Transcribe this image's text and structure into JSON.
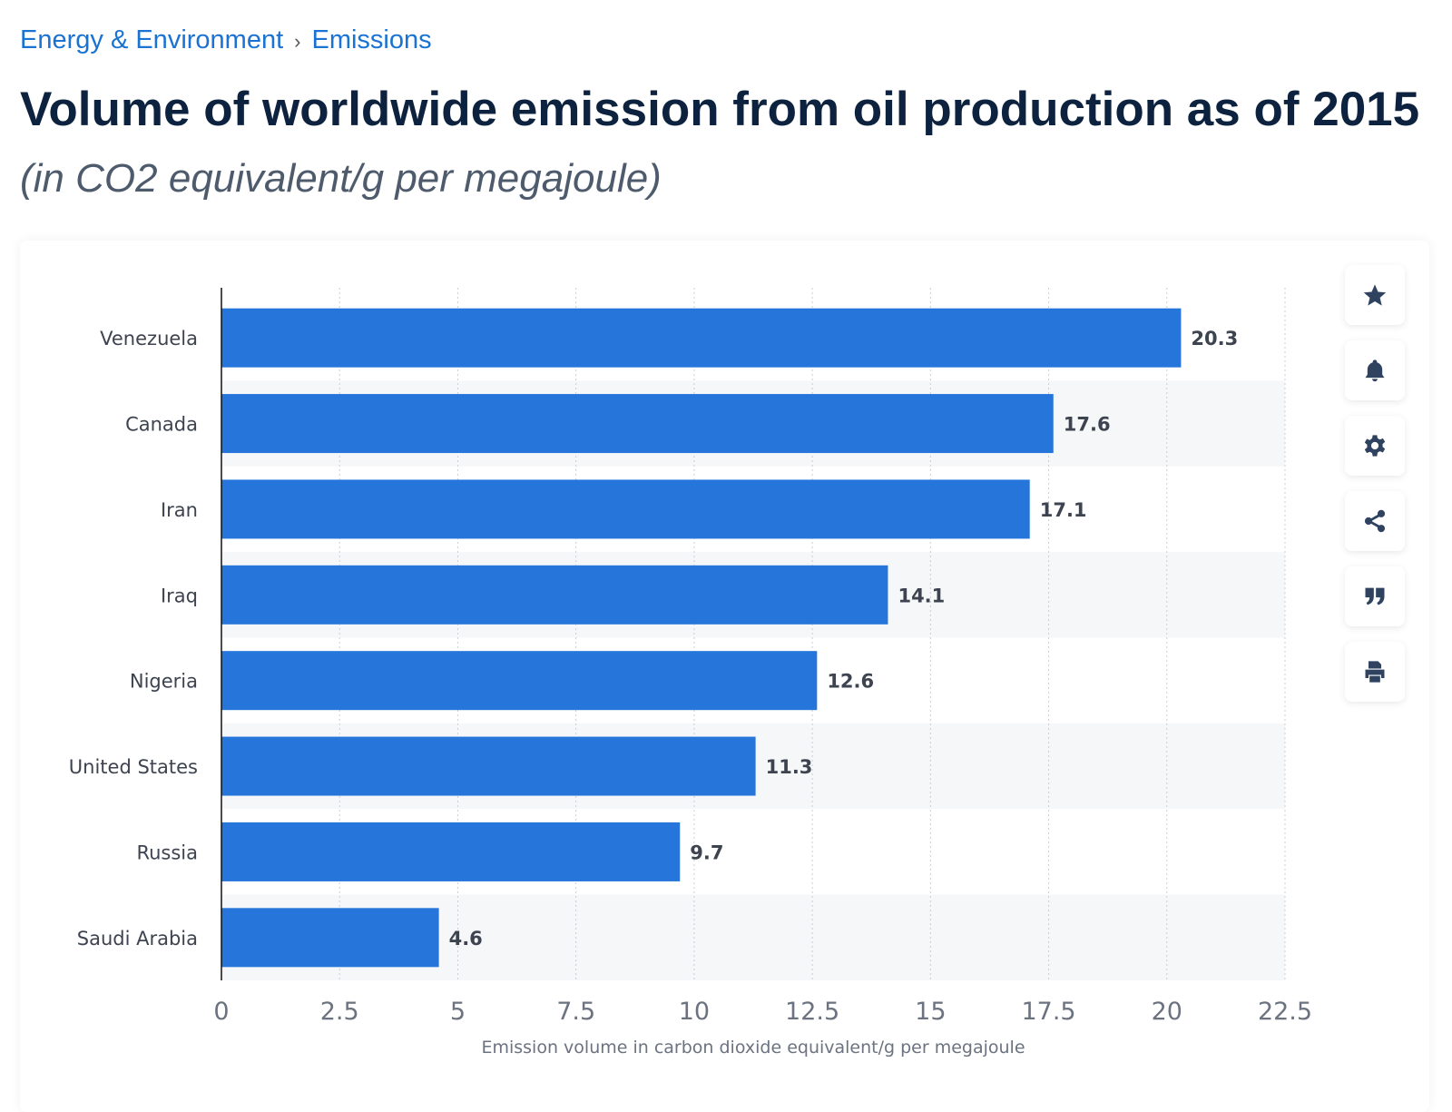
{
  "breadcrumb": {
    "items": [
      "Energy & Environment",
      "Emissions"
    ],
    "separator": "›"
  },
  "title": "Volume of worldwide emission from oil production as of 2015",
  "subtitle": "(in CO2 equivalent/g per megajoule)",
  "toolbar": {
    "icons": [
      "star-icon",
      "bell-icon",
      "gear-icon",
      "share-icon",
      "quote-icon",
      "print-icon"
    ]
  },
  "chart_data": {
    "type": "bar",
    "orientation": "horizontal",
    "categories": [
      "Venezuela",
      "Canada",
      "Iran",
      "Iraq",
      "Nigeria",
      "United States",
      "Russia",
      "Saudi Arabia"
    ],
    "values": [
      20.3,
      17.6,
      17.1,
      14.1,
      12.6,
      11.3,
      9.7,
      4.6
    ],
    "data_labels": [
      "20.3",
      "17.6",
      "17.1",
      "14.1",
      "12.6",
      "11.3",
      "9.7",
      "4.6"
    ],
    "xlabel": "Emission volume in carbon dioxide equivalent/g per megajoule",
    "xlim": [
      0,
      22.5
    ],
    "xticks": [
      "0",
      "2.5",
      "5",
      "7.5",
      "10",
      "12.5",
      "15",
      "17.5",
      "20",
      "22.5"
    ],
    "grid": true,
    "bar_color": "#2675db"
  }
}
